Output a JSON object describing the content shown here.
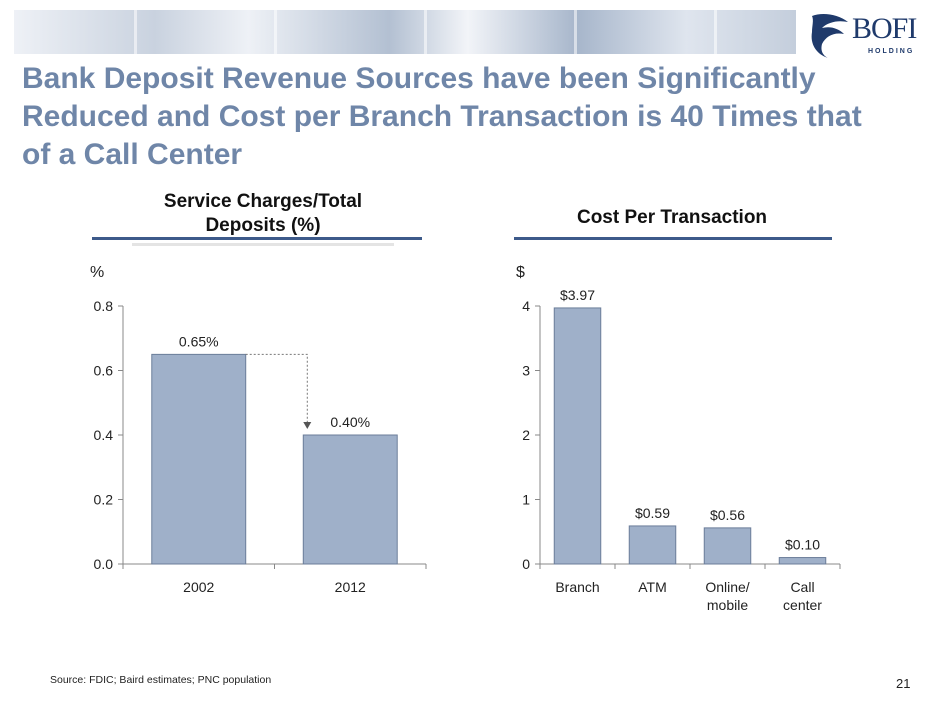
{
  "slide": {
    "title": "Bank Deposit Revenue Sources have been Significantly Reduced and Cost per Branch Transaction is 40 Times that of a Call Center",
    "logo_text": "BOFI",
    "logo_sub": "HOLDING",
    "source": "Source: FDIC; Baird estimates; PNC population",
    "page_number": "21"
  },
  "chart_data": [
    {
      "type": "bar",
      "title": "Service Charges/Total Deposits (%)",
      "ylabel": "%",
      "categories": [
        "2002",
        "2012"
      ],
      "values": [
        0.65,
        0.4
      ],
      "data_labels": [
        "0.65%",
        "0.40%"
      ],
      "ylim": [
        0,
        0.8
      ],
      "yticks": [
        "0.0",
        "0.2",
        "0.4",
        "0.6",
        "0.8"
      ],
      "bar_color": "#9fb0c9",
      "annotation": "dotted arrow from 2002 bar down to 2012 bar"
    },
    {
      "type": "bar",
      "title": "Cost Per Transaction",
      "ylabel": "$",
      "categories": [
        "Branch",
        "ATM",
        "Online/\nmobile",
        "Call\ncenter"
      ],
      "values": [
        3.97,
        0.59,
        0.56,
        0.1
      ],
      "data_labels": [
        "$3.97",
        "$0.59",
        "$0.56",
        "$0.10"
      ],
      "ylim": [
        0,
        4
      ],
      "yticks": [
        "0",
        "1",
        "2",
        "3",
        "4"
      ],
      "bar_color": "#9fb0c9"
    }
  ]
}
